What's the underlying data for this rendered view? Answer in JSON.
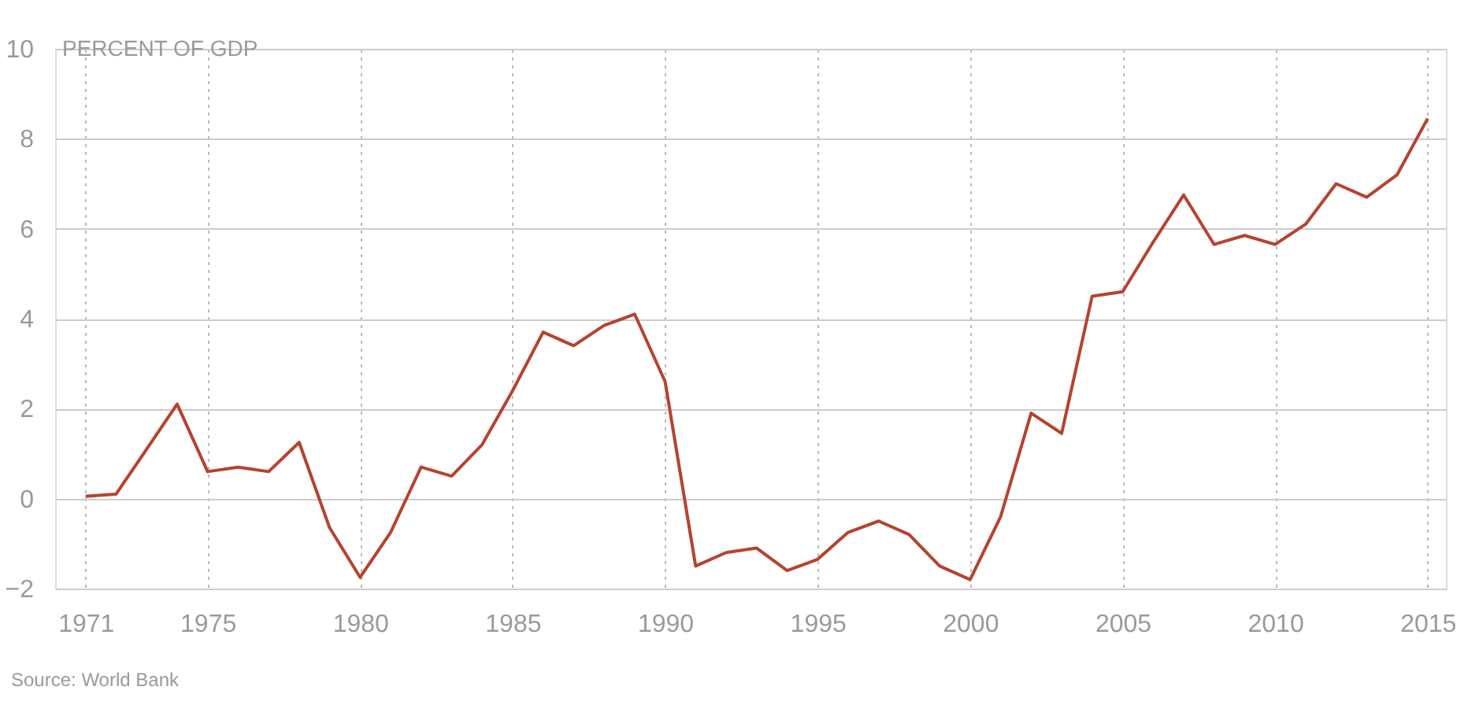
{
  "chart_data": {
    "type": "line",
    "ylabel": "PERCENT OF GDP",
    "x": [
      1971,
      1972,
      1973,
      1974,
      1975,
      1976,
      1977,
      1978,
      1979,
      1980,
      1981,
      1982,
      1983,
      1984,
      1985,
      1986,
      1987,
      1988,
      1989,
      1990,
      1991,
      1992,
      1993,
      1994,
      1995,
      1996,
      1997,
      1998,
      1999,
      2000,
      2001,
      2002,
      2003,
      2004,
      2005,
      2006,
      2007,
      2008,
      2009,
      2010,
      2011,
      2012,
      2013,
      2014,
      2015
    ],
    "series": [
      {
        "color": "#b5432f",
        "values": [
          0.05,
          0.1,
          1.1,
          2.1,
          0.6,
          0.7,
          0.6,
          1.25,
          -0.65,
          -1.75,
          -0.75,
          0.7,
          0.5,
          1.2,
          2.4,
          3.7,
          3.4,
          3.85,
          4.1,
          2.6,
          -1.5,
          -1.2,
          -1.1,
          -1.6,
          -1.35,
          -0.75,
          -0.5,
          -0.8,
          -1.5,
          -1.8,
          -0.4,
          1.9,
          1.45,
          4.5,
          4.6,
          5.7,
          6.75,
          5.65,
          5.85,
          5.65,
          6.1,
          7.0,
          6.7,
          7.2,
          8.45
        ]
      }
    ],
    "xlim": [
      1970,
      2015.6
    ],
    "xticks": [
      1971,
      1975,
      1980,
      1985,
      1990,
      1995,
      2000,
      2005,
      2010,
      2015
    ],
    "ylim": [
      -2,
      10
    ],
    "yticks": [
      -2,
      0,
      2,
      4,
      6,
      8,
      10
    ],
    "grid": true,
    "legend": false,
    "marker": "none",
    "line_style": "solid",
    "annotations": [
      "Source: World Bank"
    ]
  }
}
